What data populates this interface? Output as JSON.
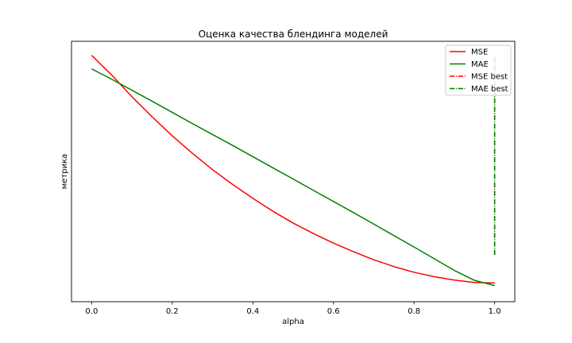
{
  "chart_data": {
    "type": "line",
    "title": "Оценка качества блендинга моделей",
    "xlabel": "alpha",
    "ylabel": "метрика",
    "xlim": [
      -0.05,
      1.05
    ],
    "ylim": [
      0.0,
      1.0
    ],
    "xticks": [
      0.0,
      0.2,
      0.4,
      0.6,
      0.8,
      1.0
    ],
    "xtick_labels": [
      "0.0",
      "0.2",
      "0.4",
      "0.6",
      "0.8",
      "1.0"
    ],
    "yticks_shown": false,
    "grid": false,
    "legend_position": "top-right",
    "series": [
      {
        "name": "MSE",
        "color": "#ff0000",
        "style": "solid",
        "x": [
          0.0,
          0.05,
          0.1,
          0.15,
          0.2,
          0.25,
          0.3,
          0.35,
          0.4,
          0.45,
          0.5,
          0.55,
          0.6,
          0.65,
          0.7,
          0.75,
          0.8,
          0.85,
          0.9,
          0.95,
          1.0
        ],
        "y": [
          0.946,
          0.87,
          0.787,
          0.71,
          0.637,
          0.57,
          0.507,
          0.45,
          0.397,
          0.347,
          0.302,
          0.262,
          0.225,
          0.192,
          0.161,
          0.135,
          0.113,
          0.096,
          0.083,
          0.074,
          0.072
        ]
      },
      {
        "name": "MAE",
        "color": "#008000",
        "style": "solid",
        "x": [
          0.0,
          0.05,
          0.1,
          0.15,
          0.2,
          0.25,
          0.3,
          0.35,
          0.4,
          0.45,
          0.5,
          0.55,
          0.6,
          0.65,
          0.7,
          0.75,
          0.8,
          0.85,
          0.9,
          0.95,
          1.0
        ],
        "y": [
          0.894,
          0.854,
          0.812,
          0.77,
          0.727,
          0.684,
          0.642,
          0.6,
          0.557,
          0.514,
          0.471,
          0.428,
          0.385,
          0.342,
          0.298,
          0.254,
          0.21,
          0.165,
          0.12,
          0.082,
          0.062
        ]
      },
      {
        "name": "MSE best",
        "color": "#ff0000",
        "style": "dashdot",
        "x": [
          1.0,
          1.0
        ],
        "y": [
          0.18,
          0.94
        ]
      },
      {
        "name": "MAE best",
        "color": "#008000",
        "style": "dashdot",
        "x": [
          1.0,
          1.0
        ],
        "y": [
          0.18,
          0.94
        ]
      }
    ]
  }
}
